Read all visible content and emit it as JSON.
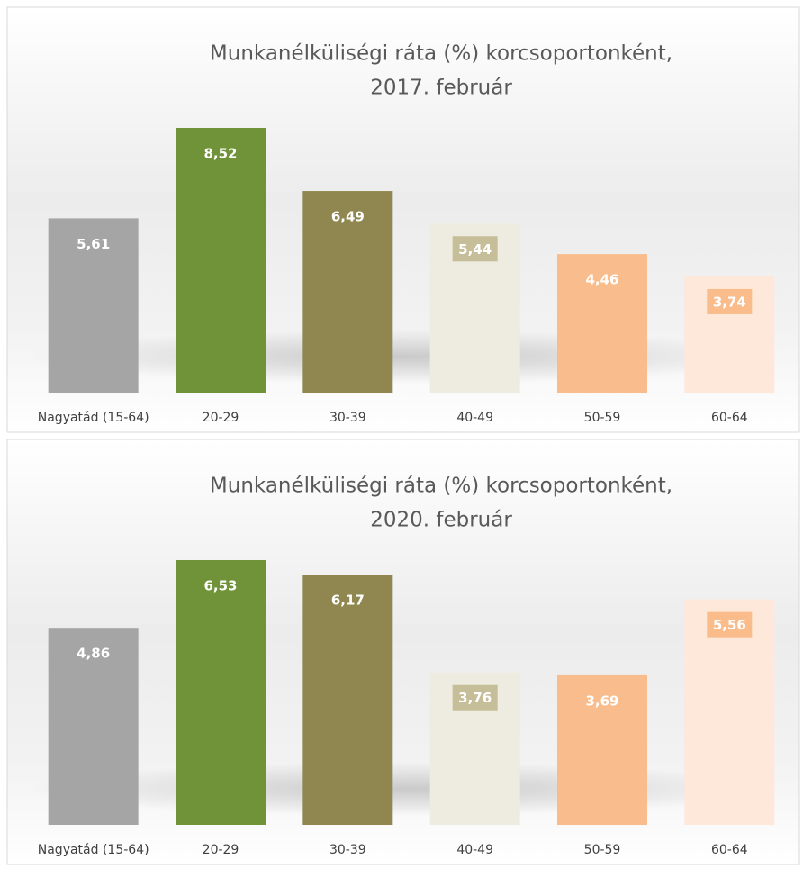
{
  "chart_data": [
    {
      "type": "bar",
      "title": [
        "Munkanélküliségi ráta (%) korcsoportonként,",
        "2017. február"
      ],
      "categories": [
        "Nagyatád (15-64)",
        "20-29",
        "30-39",
        "40-49",
        "50-59",
        "60-64"
      ],
      "values": [
        5.61,
        8.52,
        6.49,
        5.44,
        4.46,
        3.74
      ],
      "value_labels": [
        "5,61",
        "8,52",
        "6,49",
        "5,44",
        "4,46",
        "3,74"
      ],
      "colors": [
        "#a5a5a5",
        "#70933a",
        "#8f874f",
        "#eeebe0",
        "#f9bd8d",
        "#fde8d9"
      ],
      "label_colors": [
        null,
        null,
        null,
        "#c5be99",
        null,
        "#f9bc8a"
      ]
    },
    {
      "type": "bar",
      "title": [
        "Munkanélküliségi ráta (%) korcsoportonként,",
        "2020. február"
      ],
      "categories": [
        "Nagyatád (15-64)",
        "20-29",
        "30-39",
        "40-49",
        "50-59",
        "60-64"
      ],
      "values": [
        4.86,
        6.53,
        6.17,
        3.76,
        3.69,
        5.56
      ],
      "value_labels": [
        "4,86",
        "6,53",
        "6,17",
        "3,76",
        "3,69",
        "5,56"
      ],
      "colors": [
        "#a5a5a5",
        "#70933a",
        "#8f874f",
        "#eeebe0",
        "#f9bd8d",
        "#fde8d9"
      ],
      "label_colors": [
        null,
        null,
        null,
        "#c5be99",
        null,
        "#f9bc8a"
      ]
    }
  ]
}
